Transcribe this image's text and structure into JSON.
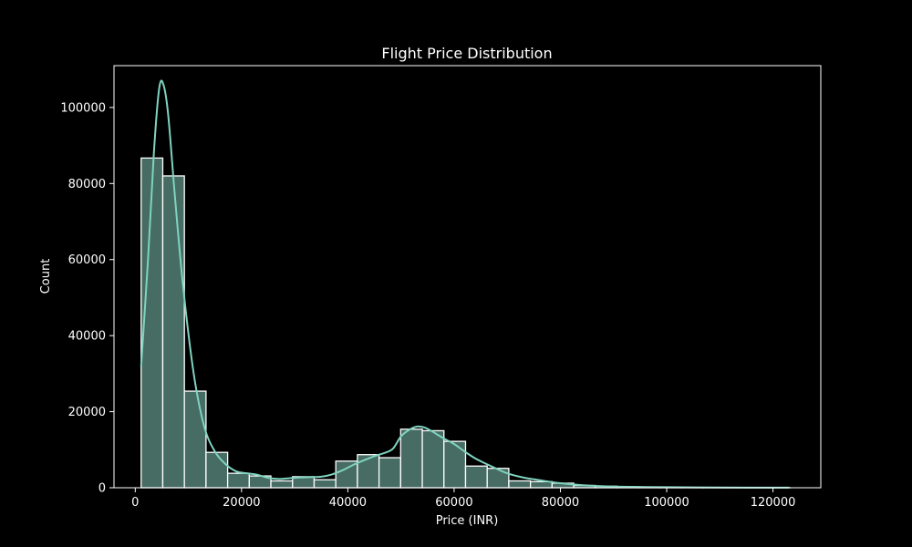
{
  "chart_data": {
    "type": "bar",
    "title": "Flight Price Distribution",
    "xlabel": "Price (INR)",
    "ylabel": "Count",
    "xlim": [
      -4000,
      129000
    ],
    "ylim": [
      0,
      111000
    ],
    "xticks": [
      0,
      20000,
      40000,
      60000,
      80000,
      100000,
      120000
    ],
    "yticks": [
      0,
      20000,
      40000,
      60000,
      80000,
      100000
    ],
    "bin_start": 1105,
    "bin_width": 4070,
    "counts": [
      86700,
      82000,
      25400,
      9300,
      3800,
      3100,
      1800,
      2900,
      2100,
      7000,
      8700,
      7900,
      15400,
      15000,
      12200,
      5700,
      5100,
      1800,
      1600,
      1200,
      600,
      400,
      250,
      150,
      100,
      80,
      60,
      40,
      30,
      20
    ],
    "kde": {
      "x": [
        1105,
        2400,
        3500,
        4500,
        5300,
        6200,
        7500,
        9000,
        11000,
        13000,
        15000,
        17000,
        19000,
        21000,
        23000,
        25000,
        27000,
        29000,
        31000,
        33000,
        35000,
        37000,
        39000,
        41000,
        43000,
        45000,
        47000,
        48500,
        50000,
        51500,
        53000,
        54500,
        56000,
        58000,
        60000,
        62000,
        64000,
        66000,
        68000,
        70000,
        73000,
        76000,
        80000,
        85000,
        90000,
        100000,
        110000,
        123000
      ],
      "y": [
        32000,
        60000,
        88000,
        105000,
        106000,
        98000,
        76000,
        53000,
        30000,
        16000,
        9500,
        6200,
        4300,
        3800,
        3400,
        2600,
        2300,
        2500,
        2700,
        2800,
        2900,
        3500,
        4600,
        6000,
        7200,
        8300,
        9200,
        10300,
        13500,
        15200,
        16100,
        15800,
        14700,
        13000,
        11500,
        9500,
        7700,
        6300,
        5000,
        3800,
        2700,
        2000,
        1200,
        600,
        300,
        150,
        60,
        20
      ]
    },
    "colors": {
      "background": "#000000",
      "bar_fill": "#466c63",
      "bar_edge": "#ffffff",
      "kde_line": "#7fd3bf",
      "axes": "#ffffff",
      "text": "#ffffff"
    }
  }
}
